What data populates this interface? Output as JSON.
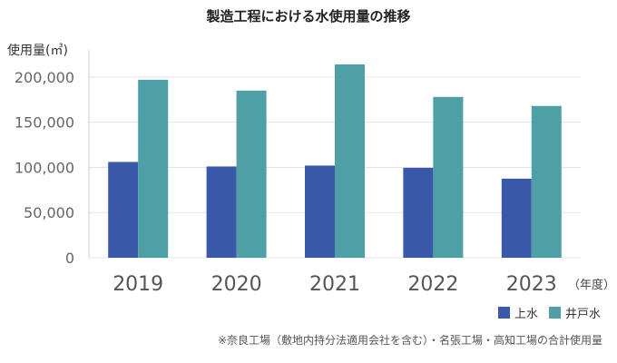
{
  "chart_data": {
    "type": "bar",
    "title": "製造工程における水使用量の推移",
    "ylabel": "使用量(㎥)",
    "xlabel": "（年度）",
    "categories": [
      "2019",
      "2020",
      "2021",
      "2022",
      "2023"
    ],
    "series": [
      {
        "name": "上水",
        "color": "#3a58a8",
        "values": [
          106000,
          101000,
          102000,
          99500,
          87500
        ]
      },
      {
        "name": "井戸水",
        "color": "#4fa0a6",
        "values": [
          197000,
          185000,
          214000,
          178000,
          168000
        ]
      }
    ],
    "ylim": [
      0,
      225000
    ],
    "yticks": [
      0,
      50000,
      100000,
      150000,
      200000
    ],
    "ytick_labels": [
      "0",
      "50,000",
      "100,000",
      "150,000",
      "200,000"
    ],
    "grid": true,
    "legend": "bottom-right"
  },
  "footnote": "※奈良工場（敷地内持分法適用会社を含む）・名張工場・高知工場の合計使用量"
}
